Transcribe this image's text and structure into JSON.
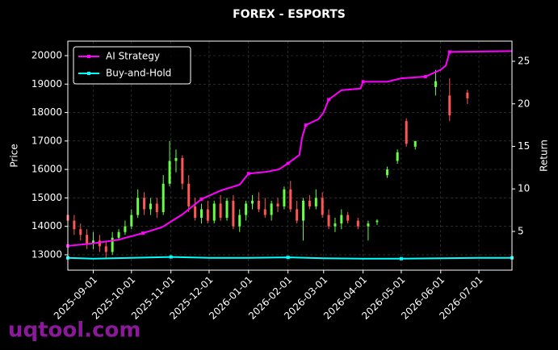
{
  "chart_data": {
    "type": "candlestick",
    "title": "FOREX - ESPORTS",
    "ylabel": "Price",
    "y2label": "Return",
    "watermark": "uqtool.com",
    "legend": "upper left",
    "grid": true,
    "xlim": [
      "2025-08-12",
      "2026-07-27"
    ],
    "xticks": [
      "2025-09-01",
      "2025-10-01",
      "2025-11-01",
      "2025-12-01",
      "2026-01-01",
      "2026-02-01",
      "2026-03-01",
      "2026-04-01",
      "2026-05-01",
      "2026-06-01",
      "2026-07-01"
    ],
    "ylim": [
      12460,
      20510
    ],
    "yticks": [
      13000,
      14000,
      15000,
      16000,
      17000,
      18000,
      19000,
      20000
    ],
    "y2lim": [
      0.45,
      27.37
    ],
    "y2ticks": [
      5,
      10,
      15,
      20,
      25
    ],
    "up_color": "#66ff44",
    "down_color": "#ff5555",
    "candles": {
      "x": [
        "2025-08-12",
        "2025-08-17",
        "2025-08-22",
        "2025-08-27",
        "2025-09-01",
        "2025-09-06",
        "2025-09-11",
        "2025-09-16",
        "2025-09-21",
        "2025-09-26",
        "2025-10-01",
        "2025-10-06",
        "2025-10-11",
        "2025-10-16",
        "2025-10-21",
        "2025-10-26",
        "2025-10-31",
        "2025-11-05",
        "2025-11-10",
        "2025-11-15",
        "2025-11-20",
        "2025-11-25",
        "2025-11-30",
        "2025-12-05",
        "2025-12-10",
        "2025-12-15",
        "2025-12-20",
        "2025-12-25",
        "2025-12-30",
        "2026-01-04",
        "2026-01-09",
        "2026-01-14",
        "2026-01-19",
        "2026-01-24",
        "2026-01-29",
        "2026-02-03",
        "2026-02-08",
        "2026-02-13",
        "2026-02-18",
        "2026-02-23",
        "2026-02-28",
        "2026-03-05",
        "2026-03-10",
        "2026-03-15",
        "2026-03-20",
        "2026-03-28",
        "2026-04-05",
        "2026-04-12",
        "2026-04-20",
        "2026-04-28",
        "2026-05-05",
        "2026-05-12",
        "2026-05-28",
        "2026-06-08",
        "2026-06-22"
      ],
      "open": [
        14400,
        14200,
        13900,
        13700,
        13400,
        13500,
        13300,
        13100,
        13600,
        13800,
        14000,
        14400,
        15000,
        14600,
        14800,
        14500,
        15500,
        16300,
        16400,
        15500,
        14700,
        14300,
        14600,
        14200,
        14800,
        14300,
        14900,
        14000,
        14400,
        14800,
        14900,
        14600,
        14400,
        14800,
        14700,
        15300,
        14600,
        14200,
        14900,
        14700,
        15000,
        14400,
        14000,
        14100,
        14400,
        14200,
        14000,
        14150,
        15800,
        16300,
        17700,
        16800,
        18900,
        18600,
        18700
      ],
      "high": [
        14500,
        14400,
        14100,
        13900,
        13800,
        13700,
        13500,
        13800,
        13900,
        14200,
        14600,
        15300,
        15200,
        15000,
        15000,
        15800,
        17000,
        16700,
        16500,
        15800,
        15000,
        14800,
        14900,
        14900,
        15100,
        15000,
        15100,
        14600,
        14900,
        15100,
        15200,
        15000,
        14900,
        15000,
        15400,
        15600,
        14900,
        15000,
        15100,
        15300,
        15200,
        14600,
        14300,
        14600,
        14500,
        14300,
        14200,
        14250,
        16100,
        16700,
        17800,
        17000,
        19500,
        19200,
        18800
      ],
      "low": [
        14000,
        13700,
        13500,
        13200,
        13200,
        13100,
        12900,
        13000,
        13500,
        13700,
        13900,
        14300,
        14400,
        14400,
        14300,
        14400,
        15400,
        15900,
        15300,
        14500,
        14200,
        14100,
        14100,
        14100,
        14200,
        14200,
        13900,
        13800,
        14200,
        14600,
        14500,
        14300,
        14200,
        14500,
        14600,
        14500,
        14100,
        13500,
        14600,
        14600,
        14300,
        13900,
        13800,
        13900,
        14100,
        13900,
        13500,
        14050,
        15700,
        16200,
        16800,
        16700,
        18600,
        17700,
        18300
      ],
      "close": [
        14200,
        13900,
        13700,
        13400,
        13500,
        13300,
        13100,
        13600,
        13800,
        14000,
        14400,
        15000,
        14600,
        14800,
        14500,
        15500,
        16300,
        16400,
        15500,
        14700,
        14300,
        14600,
        14200,
        14800,
        14300,
        14900,
        14000,
        14400,
        14800,
        14900,
        14600,
        14400,
        14800,
        14700,
        15300,
        14600,
        14200,
        14900,
        14700,
        15000,
        14400,
        14000,
        14100,
        14400,
        14200,
        14000,
        14100,
        14200,
        16000,
        16600,
        16900,
        17000,
        19100,
        17900,
        18500
      ]
    },
    "series": [
      {
        "name": "AI Strategy",
        "color": "#ff00ff",
        "axis": "y2",
        "x": [
          "2025-08-12",
          "2025-09-01",
          "2025-09-20",
          "2025-10-10",
          "2025-10-25",
          "2025-11-10",
          "2025-11-25",
          "2025-12-10",
          "2025-12-25",
          "2026-01-01",
          "2026-01-15",
          "2026-01-25",
          "2026-02-01",
          "2026-02-10",
          "2026-02-12",
          "2026-02-15",
          "2026-02-25",
          "2026-03-01",
          "2026-03-05",
          "2026-03-15",
          "2026-03-30",
          "2026-04-01",
          "2026-04-20",
          "2026-05-01",
          "2026-05-20",
          "2026-06-01",
          "2026-06-05",
          "2026-06-08",
          "2026-07-27"
        ],
        "values": [
          3.3,
          3.6,
          4.0,
          4.8,
          5.5,
          7.0,
          8.8,
          9.8,
          10.5,
          11.8,
          12.0,
          12.3,
          13.0,
          14.0,
          16.0,
          17.5,
          18.2,
          19.0,
          20.5,
          21.6,
          21.8,
          22.6,
          22.6,
          23.0,
          23.2,
          24.0,
          24.5,
          26.1,
          26.2
        ]
      },
      {
        "name": "Buy-and-Hold",
        "color": "#00ffff",
        "axis": "y2",
        "x": [
          "2025-08-12",
          "2025-09-01",
          "2025-10-01",
          "2025-11-01",
          "2025-12-01",
          "2026-01-01",
          "2026-02-01",
          "2026-03-01",
          "2026-04-01",
          "2026-05-01",
          "2026-06-01",
          "2026-07-01",
          "2026-07-27"
        ],
        "values": [
          1.9,
          1.8,
          1.9,
          2.0,
          1.9,
          1.9,
          1.95,
          1.85,
          1.8,
          1.8,
          1.85,
          1.9,
          1.9
        ]
      }
    ]
  }
}
